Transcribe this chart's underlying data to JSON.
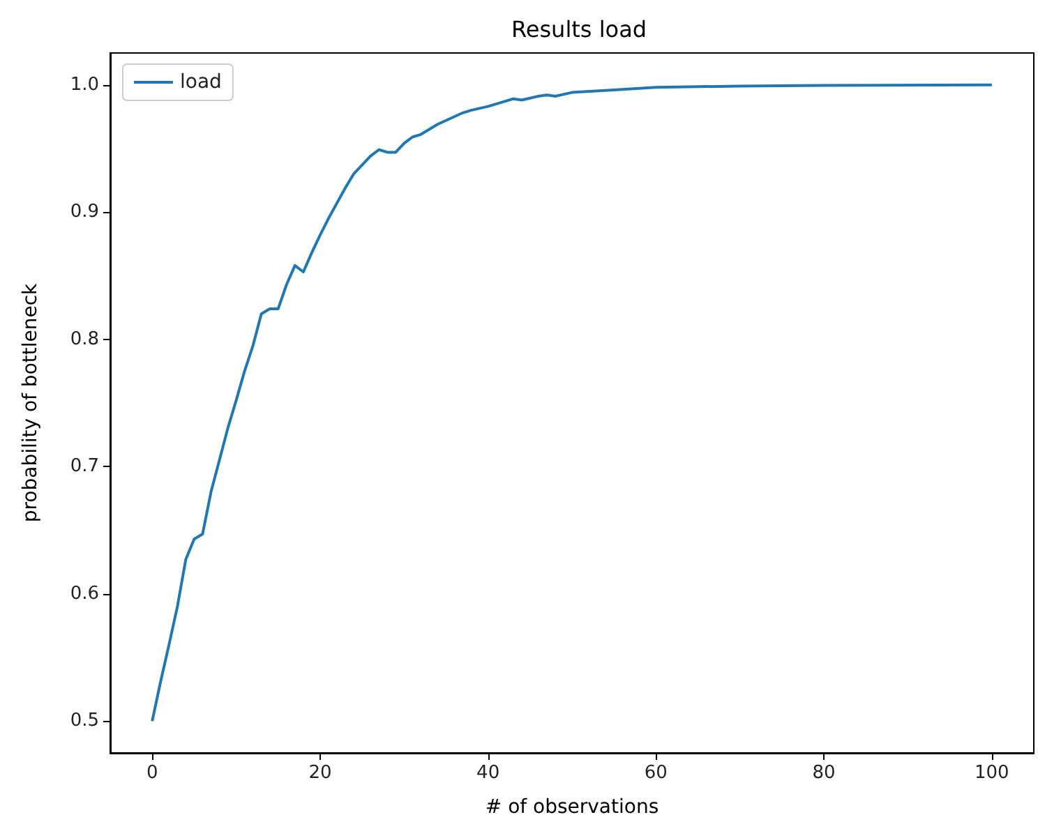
{
  "chart_data": {
    "type": "line",
    "title": "Results load",
    "xlabel": "# of observations",
    "ylabel": "probability of bottleneck",
    "series": [
      {
        "name": "load",
        "color": "#1f77b4",
        "x": [
          0,
          1,
          2,
          3,
          4,
          5,
          6,
          7,
          8,
          9,
          10,
          11,
          12,
          13,
          14,
          15,
          16,
          17,
          18,
          19,
          20,
          21,
          22,
          23,
          24,
          25,
          26,
          27,
          28,
          29,
          30,
          31,
          32,
          33,
          34,
          35,
          36,
          37,
          38,
          40,
          42,
          43,
          44,
          46,
          47,
          48,
          50,
          55,
          60,
          70,
          80,
          100
        ],
        "values": [
          0.5,
          0.531,
          0.56,
          0.59,
          0.627,
          0.643,
          0.647,
          0.68,
          0.705,
          0.73,
          0.752,
          0.775,
          0.795,
          0.82,
          0.824,
          0.824,
          0.843,
          0.858,
          0.853,
          0.868,
          0.882,
          0.895,
          0.907,
          0.919,
          0.93,
          0.937,
          0.944,
          0.949,
          0.947,
          0.947,
          0.954,
          0.959,
          0.961,
          0.965,
          0.969,
          0.972,
          0.975,
          0.978,
          0.98,
          0.983,
          0.987,
          0.989,
          0.988,
          0.991,
          0.992,
          0.991,
          0.994,
          0.996,
          0.998,
          0.999,
          0.9995,
          1.0
        ]
      }
    ],
    "xlim": [
      -5,
      105
    ],
    "xticks": [
      0,
      20,
      40,
      60,
      80,
      100
    ],
    "ylim": [
      0.475,
      1.025
    ],
    "yticks": [
      0.5,
      0.6,
      0.7,
      0.8,
      0.9,
      {
        "value": 1,
        "label": "1.0"
      }
    ],
    "legend": "top left",
    "marker": "none",
    "line_style": "solid",
    "grid": false
  }
}
